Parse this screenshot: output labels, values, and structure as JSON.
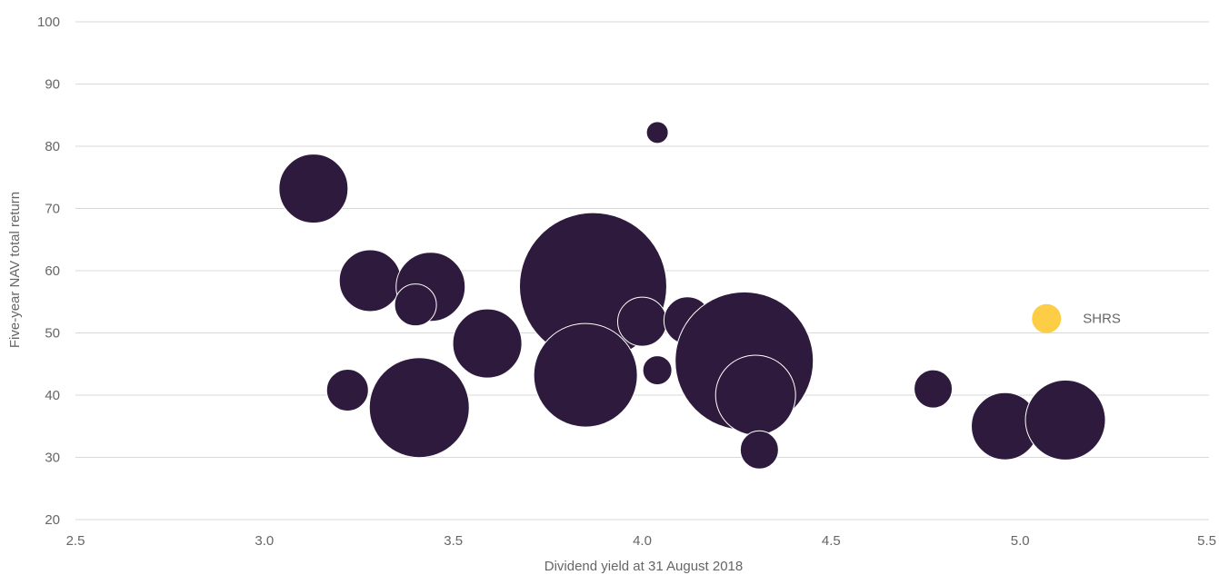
{
  "chart_data": {
    "type": "scatter",
    "subtype": "bubble",
    "title": "",
    "xlabel": "Dividend yield at 31 August 2018",
    "ylabel": "Five-year NAV total return",
    "xlim": [
      2.5,
      5.5
    ],
    "ylim": [
      20,
      100
    ],
    "x_ticks": [
      "2.5",
      "3.0",
      "3.5",
      "4.0",
      "4.5",
      "5.0",
      "5.5"
    ],
    "y_ticks": [
      "20",
      "30",
      "40",
      "50",
      "60",
      "70",
      "80",
      "90",
      "100"
    ],
    "grid": "horizontal",
    "colors": {
      "peer": "#2e1a3d",
      "highlight": "#fccd45",
      "grid": "#d9d9d9",
      "text": "#666666"
    },
    "series": [
      {
        "points": [
          {
            "x": 3.13,
            "y": 73.2,
            "size": 38
          },
          {
            "x": 3.28,
            "y": 58.4,
            "size": 34
          },
          {
            "x": 3.44,
            "y": 57.4,
            "size": 38
          },
          {
            "x": 3.4,
            "y": 54.5,
            "size": 23
          },
          {
            "x": 3.59,
            "y": 48.3,
            "size": 38
          },
          {
            "x": 3.22,
            "y": 40.8,
            "size": 23
          },
          {
            "x": 3.41,
            "y": 38.0,
            "size": 55
          },
          {
            "x": 3.87,
            "y": 57.5,
            "size": 81
          },
          {
            "x": 3.85,
            "y": 43.2,
            "size": 57
          },
          {
            "x": 4.04,
            "y": 82.2,
            "size": 12
          },
          {
            "x": 4.0,
            "y": 51.8,
            "size": 27
          },
          {
            "x": 4.12,
            "y": 52.0,
            "size": 26
          },
          {
            "x": 4.04,
            "y": 44.0,
            "size": 16
          },
          {
            "x": 4.27,
            "y": 45.5,
            "size": 76
          },
          {
            "x": 4.3,
            "y": 40.0,
            "size": 44
          },
          {
            "x": 4.31,
            "y": 31.2,
            "size": 21
          },
          {
            "x": 4.77,
            "y": 41.0,
            "size": 21
          },
          {
            "x": 4.96,
            "y": 35.0,
            "size": 37
          },
          {
            "x": 5.12,
            "y": 36.0,
            "size": 44
          }
        ]
      },
      {
        "name": "SHRS",
        "highlight": true,
        "points": [
          {
            "x": 5.07,
            "y": 52.3,
            "size": 16
          }
        ]
      }
    ]
  }
}
